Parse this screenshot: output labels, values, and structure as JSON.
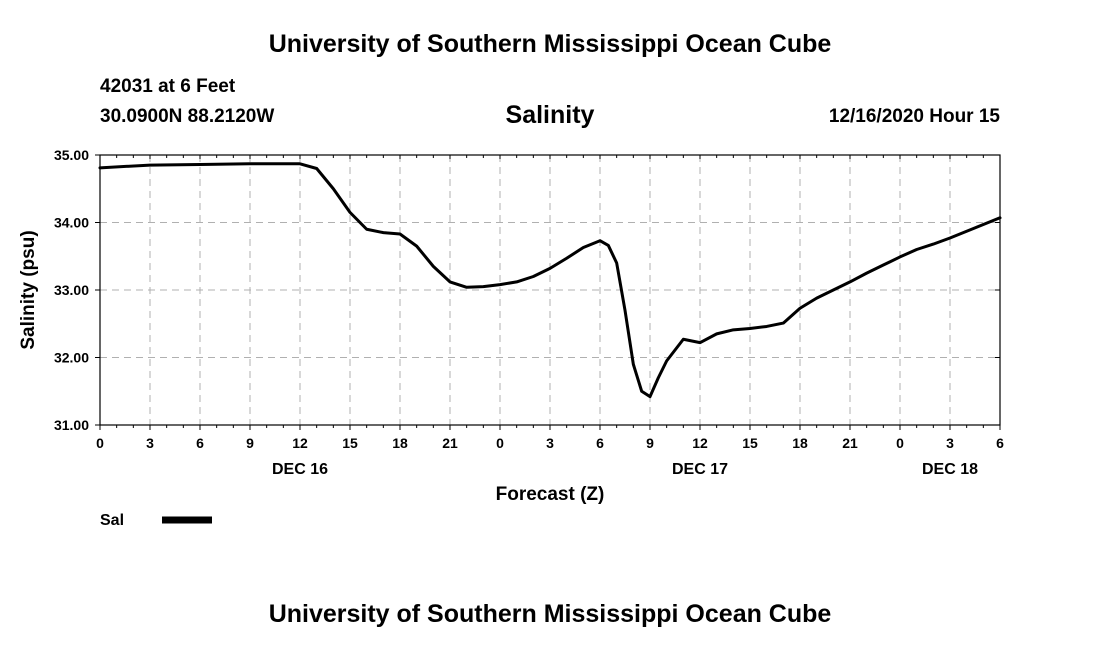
{
  "header": {
    "org_title": "University of Southern Mississippi Ocean Cube",
    "station": "42031 at 6 Feet",
    "coords": "30.0900N 88.2120W",
    "issued": "12/16/2020 Hour 15"
  },
  "footer": {
    "org_title": "University of Southern Mississippi Ocean Cube"
  },
  "chart_data": {
    "type": "line",
    "title": "Salinity",
    "xlabel": "Forecast (Z)",
    "ylabel": "Salinity (psu)",
    "ylim": [
      31.0,
      35.0
    ],
    "xlim": [
      0,
      54
    ],
    "x_unit": "forecast hours from 12/16/2020 00Z",
    "grid": true,
    "y_ticks": [
      "31.00",
      "32.00",
      "33.00",
      "34.00",
      "35.00"
    ],
    "x_tick_labels": [
      "0",
      "3",
      "6",
      "9",
      "12",
      "15",
      "18",
      "21",
      "0",
      "3",
      "6",
      "9",
      "12",
      "15",
      "18",
      "21",
      "0",
      "3",
      "6"
    ],
    "date_labels": [
      {
        "label": "DEC 16",
        "hour": 12
      },
      {
        "label": "DEC 17",
        "hour": 36
      },
      {
        "label": "DEC 18",
        "hour": 51
      }
    ],
    "legend": {
      "placement": "bottom-left"
    },
    "series": [
      {
        "name": "Sal",
        "color": "#000000",
        "x": [
          0,
          3,
          6,
          9,
          12,
          13,
          14,
          15,
          16,
          17,
          18,
          19,
          20,
          21,
          22,
          23,
          24,
          25,
          26,
          27,
          28,
          29,
          30,
          30.5,
          31,
          31.5,
          32,
          32.5,
          33,
          33.5,
          34,
          35,
          36,
          37,
          38,
          39,
          40,
          41,
          42,
          43,
          44,
          45,
          46,
          47,
          48,
          49,
          50,
          51,
          52,
          53,
          54
        ],
        "y": [
          34.81,
          34.85,
          34.86,
          34.87,
          34.87,
          34.8,
          34.5,
          34.15,
          33.9,
          33.85,
          33.83,
          33.65,
          33.35,
          33.12,
          33.04,
          33.05,
          33.08,
          33.12,
          33.2,
          33.32,
          33.47,
          33.63,
          33.73,
          33.66,
          33.4,
          32.7,
          31.9,
          31.5,
          31.42,
          31.7,
          31.95,
          32.27,
          32.22,
          32.35,
          32.41,
          32.43,
          32.46,
          32.51,
          32.73,
          32.88,
          33.0,
          33.12,
          33.25,
          33.37,
          33.49,
          33.6,
          33.68,
          33.77,
          33.87,
          33.97,
          34.07
        ]
      }
    ]
  }
}
